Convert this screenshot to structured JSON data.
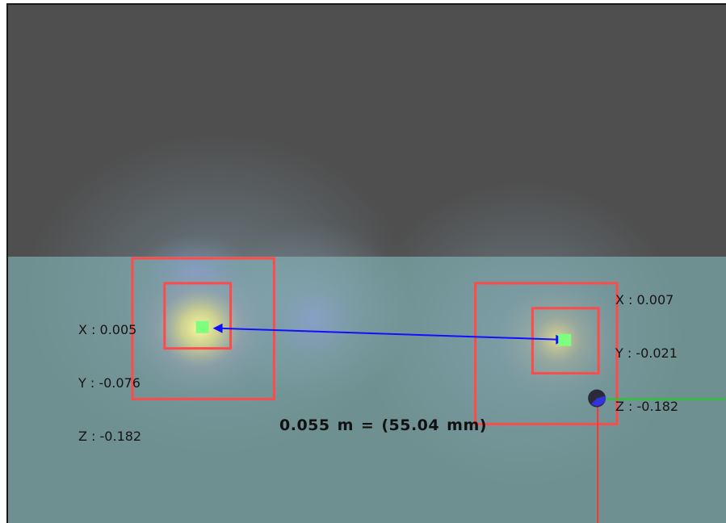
{
  "markers": {
    "left": {
      "x": "X : 0.005",
      "y": "Y : -0.076",
      "z": "Z : -0.182"
    },
    "right": {
      "x": "X : 0.007",
      "y": "Y : -0.021",
      "z": "Z : -0.182"
    }
  },
  "measurement": {
    "meters": "0.055",
    "meter_unit": "m",
    "equals": "=",
    "millimeters": "(55.04",
    "mm_unit": "mm)"
  },
  "colors": {
    "wall": "#4f4f4f",
    "floor": "#6f9090",
    "selection_box": "#ff4a4a",
    "point_marker": "#7dff7d",
    "measure_line": "#1010ff",
    "axis_x": "#22cc22",
    "axis_y": "#ff3333"
  }
}
